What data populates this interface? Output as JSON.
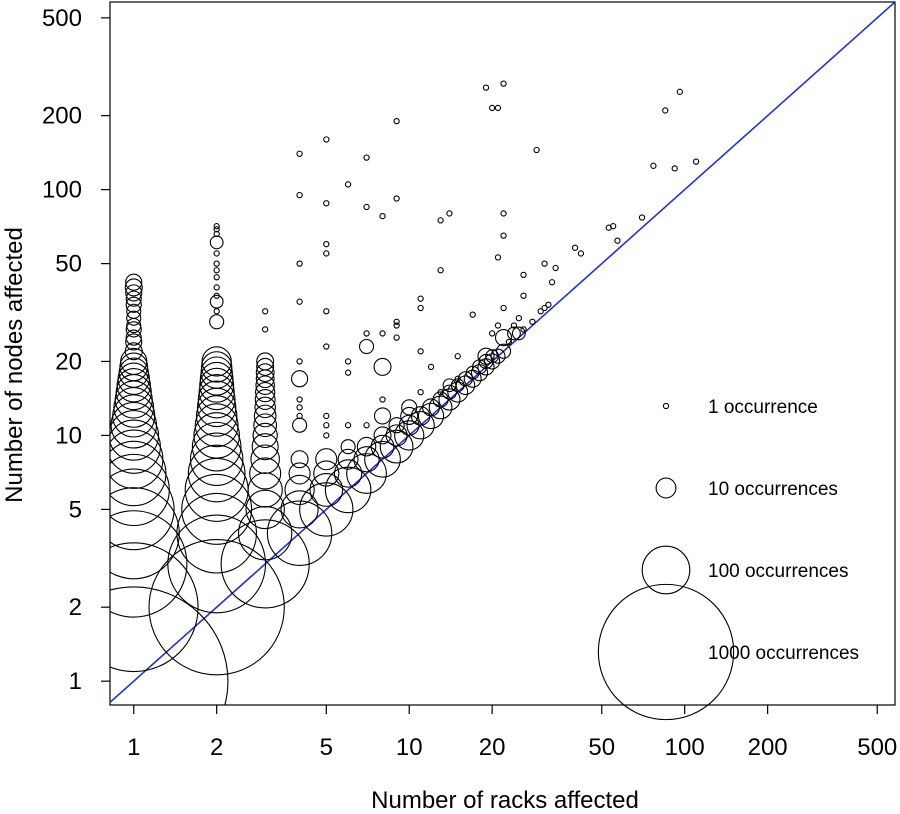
{
  "chart_data": {
    "type": "scatter",
    "title": "",
    "xlabel": "Number of racks affected",
    "ylabel": "Number of nodes affected",
    "x_scale": "log",
    "y_scale": "log",
    "xlim": [
      0.82,
      580
    ],
    "ylim": [
      0.8,
      580
    ],
    "x_ticks": [
      1,
      2,
      5,
      10,
      20,
      50,
      100,
      200,
      500
    ],
    "y_ticks": [
      1,
      2,
      5,
      10,
      20,
      50,
      100,
      200,
      500
    ],
    "x_tick_labels": [
      "1",
      "2",
      "5",
      "10",
      "20",
      "50",
      "100",
      "200",
      "500"
    ],
    "y_tick_labels": [
      "1",
      "2",
      "5",
      "10",
      "20",
      "50",
      "100",
      "200",
      "500"
    ],
    "grid": false,
    "reference_line": {
      "type": "y=x",
      "color": "#2233cc"
    },
    "marker_size_meaning": "bubble area proportional to number of occurrences",
    "legend": {
      "placement": "right",
      "entries": [
        {
          "occurrences": 1,
          "label": "1 occurrence"
        },
        {
          "occurrences": 10,
          "label": "10 occurrences"
        },
        {
          "occurrences": 100,
          "label": "100 occurrences"
        },
        {
          "occurrences": 1000,
          "label": "1000 occurrences"
        }
      ]
    },
    "points": [
      {
        "x": 1,
        "y": 1,
        "n": 2000
      },
      {
        "x": 1,
        "y": 2,
        "n": 900
      },
      {
        "x": 1,
        "y": 3,
        "n": 600
      },
      {
        "x": 1,
        "y": 4,
        "n": 430
      },
      {
        "x": 1,
        "y": 5,
        "n": 330
      },
      {
        "x": 1,
        "y": 6,
        "n": 250
      },
      {
        "x": 1,
        "y": 7,
        "n": 200
      },
      {
        "x": 1,
        "y": 8,
        "n": 160
      },
      {
        "x": 1,
        "y": 9,
        "n": 130
      },
      {
        "x": 1,
        "y": 10,
        "n": 110
      },
      {
        "x": 1,
        "y": 11,
        "n": 90
      },
      {
        "x": 1,
        "y": 12,
        "n": 75
      },
      {
        "x": 1,
        "y": 13,
        "n": 65
      },
      {
        "x": 1,
        "y": 14,
        "n": 55
      },
      {
        "x": 1,
        "y": 15,
        "n": 48
      },
      {
        "x": 1,
        "y": 16,
        "n": 42
      },
      {
        "x": 1,
        "y": 17,
        "n": 36
      },
      {
        "x": 1,
        "y": 18,
        "n": 30
      },
      {
        "x": 1,
        "y": 19,
        "n": 26
      },
      {
        "x": 1,
        "y": 20,
        "n": 22
      },
      {
        "x": 1,
        "y": 22,
        "n": 6
      },
      {
        "x": 1,
        "y": 24,
        "n": 5
      },
      {
        "x": 1,
        "y": 25,
        "n": 4
      },
      {
        "x": 1,
        "y": 27,
        "n": 4
      },
      {
        "x": 1,
        "y": 28,
        "n": 3
      },
      {
        "x": 1,
        "y": 30,
        "n": 3
      },
      {
        "x": 1,
        "y": 32,
        "n": 3
      },
      {
        "x": 1,
        "y": 34,
        "n": 4
      },
      {
        "x": 1,
        "y": 36,
        "n": 4
      },
      {
        "x": 1,
        "y": 38,
        "n": 5
      },
      {
        "x": 1,
        "y": 40,
        "n": 6
      },
      {
        "x": 1,
        "y": 42,
        "n": 5
      },
      {
        "x": 2,
        "y": 2,
        "n": 1000
      },
      {
        "x": 2,
        "y": 3,
        "n": 500
      },
      {
        "x": 2,
        "y": 4,
        "n": 320
      },
      {
        "x": 2,
        "y": 5,
        "n": 240
      },
      {
        "x": 2,
        "y": 6,
        "n": 190
      },
      {
        "x": 2,
        "y": 7,
        "n": 150
      },
      {
        "x": 2,
        "y": 8,
        "n": 125
      },
      {
        "x": 2,
        "y": 9,
        "n": 105
      },
      {
        "x": 2,
        "y": 10,
        "n": 90
      },
      {
        "x": 2,
        "y": 11,
        "n": 78
      },
      {
        "x": 2,
        "y": 12,
        "n": 68
      },
      {
        "x": 2,
        "y": 13,
        "n": 60
      },
      {
        "x": 2,
        "y": 14,
        "n": 54
      },
      {
        "x": 2,
        "y": 15,
        "n": 48
      },
      {
        "x": 2,
        "y": 16,
        "n": 44
      },
      {
        "x": 2,
        "y": 17,
        "n": 40
      },
      {
        "x": 2,
        "y": 18,
        "n": 36
      },
      {
        "x": 2,
        "y": 19,
        "n": 33
      },
      {
        "x": 2,
        "y": 20,
        "n": 30
      },
      {
        "x": 2,
        "y": 29,
        "n": 3
      },
      {
        "x": 2,
        "y": 32,
        "n": 1
      },
      {
        "x": 2,
        "y": 35,
        "n": 2
      },
      {
        "x": 2,
        "y": 37,
        "n": 1
      },
      {
        "x": 2,
        "y": 40,
        "n": 1
      },
      {
        "x": 2,
        "y": 44,
        "n": 1
      },
      {
        "x": 2,
        "y": 47,
        "n": 1
      },
      {
        "x": 2,
        "y": 50,
        "n": 1
      },
      {
        "x": 2,
        "y": 55,
        "n": 1
      },
      {
        "x": 2,
        "y": 61,
        "n": 2
      },
      {
        "x": 2,
        "y": 66,
        "n": 1
      },
      {
        "x": 2,
        "y": 69,
        "n": 1
      },
      {
        "x": 2,
        "y": 71,
        "n": 1
      },
      {
        "x": 3,
        "y": 3,
        "n": 400
      },
      {
        "x": 3,
        "y": 4,
        "n": 130
      },
      {
        "x": 3,
        "y": 5,
        "n": 60
      },
      {
        "x": 3,
        "y": 6,
        "n": 45
      },
      {
        "x": 3,
        "y": 7,
        "n": 35
      },
      {
        "x": 3,
        "y": 8,
        "n": 28
      },
      {
        "x": 3,
        "y": 9,
        "n": 22
      },
      {
        "x": 3,
        "y": 10,
        "n": 18
      },
      {
        "x": 3,
        "y": 11,
        "n": 15
      },
      {
        "x": 3,
        "y": 12,
        "n": 13
      },
      {
        "x": 3,
        "y": 13,
        "n": 11
      },
      {
        "x": 3,
        "y": 14,
        "n": 10
      },
      {
        "x": 3,
        "y": 15,
        "n": 9
      },
      {
        "x": 3,
        "y": 16,
        "n": 8
      },
      {
        "x": 3,
        "y": 17,
        "n": 7
      },
      {
        "x": 3,
        "y": 18,
        "n": 7
      },
      {
        "x": 3,
        "y": 19,
        "n": 6
      },
      {
        "x": 3,
        "y": 20,
        "n": 6
      },
      {
        "x": 3,
        "y": 27,
        "n": 1
      },
      {
        "x": 3,
        "y": 32,
        "n": 1
      },
      {
        "x": 4,
        "y": 4,
        "n": 200
      },
      {
        "x": 4,
        "y": 5,
        "n": 55
      },
      {
        "x": 4,
        "y": 6,
        "n": 30
      },
      {
        "x": 4,
        "y": 7,
        "n": 12
      },
      {
        "x": 4,
        "y": 8,
        "n": 6
      },
      {
        "x": 4,
        "y": 11,
        "n": 3
      },
      {
        "x": 4,
        "y": 12,
        "n": 1
      },
      {
        "x": 4,
        "y": 13,
        "n": 1
      },
      {
        "x": 4,
        "y": 14,
        "n": 1
      },
      {
        "x": 4,
        "y": 17,
        "n": 5
      },
      {
        "x": 4,
        "y": 20,
        "n": 1
      },
      {
        "x": 4,
        "y": 35,
        "n": 1
      },
      {
        "x": 4,
        "y": 50,
        "n": 1
      },
      {
        "x": 4,
        "y": 95,
        "n": 1
      },
      {
        "x": 4,
        "y": 140,
        "n": 1
      },
      {
        "x": 5,
        "y": 5,
        "n": 130
      },
      {
        "x": 5,
        "y": 6,
        "n": 40
      },
      {
        "x": 5,
        "y": 7,
        "n": 20
      },
      {
        "x": 5,
        "y": 8,
        "n": 12
      },
      {
        "x": 5,
        "y": 10,
        "n": 1
      },
      {
        "x": 5,
        "y": 11,
        "n": 1
      },
      {
        "x": 5,
        "y": 12,
        "n": 1
      },
      {
        "x": 5,
        "y": 23,
        "n": 1
      },
      {
        "x": 5,
        "y": 32,
        "n": 1
      },
      {
        "x": 5,
        "y": 55,
        "n": 1
      },
      {
        "x": 5,
        "y": 60,
        "n": 1
      },
      {
        "x": 5,
        "y": 88,
        "n": 1
      },
      {
        "x": 5,
        "y": 160,
        "n": 1
      },
      {
        "x": 6,
        "y": 6,
        "n": 90
      },
      {
        "x": 6,
        "y": 7,
        "n": 25
      },
      {
        "x": 6,
        "y": 8,
        "n": 10
      },
      {
        "x": 6,
        "y": 9,
        "n": 3
      },
      {
        "x": 6,
        "y": 11,
        "n": 1
      },
      {
        "x": 6,
        "y": 18,
        "n": 1
      },
      {
        "x": 6,
        "y": 20,
        "n": 1
      },
      {
        "x": 6,
        "y": 105,
        "n": 1
      },
      {
        "x": 7,
        "y": 7,
        "n": 65
      },
      {
        "x": 7,
        "y": 8,
        "n": 20
      },
      {
        "x": 7,
        "y": 9,
        "n": 8
      },
      {
        "x": 7,
        "y": 11,
        "n": 1
      },
      {
        "x": 7,
        "y": 23,
        "n": 3
      },
      {
        "x": 7,
        "y": 26,
        "n": 1
      },
      {
        "x": 7,
        "y": 85,
        "n": 1
      },
      {
        "x": 7,
        "y": 135,
        "n": 1
      },
      {
        "x": 8,
        "y": 8,
        "n": 50
      },
      {
        "x": 8,
        "y": 9,
        "n": 15
      },
      {
        "x": 8,
        "y": 10,
        "n": 6
      },
      {
        "x": 8,
        "y": 12,
        "n": 5
      },
      {
        "x": 8,
        "y": 14,
        "n": 1
      },
      {
        "x": 8,
        "y": 19,
        "n": 6
      },
      {
        "x": 8,
        "y": 26,
        "n": 1
      },
      {
        "x": 8,
        "y": 78,
        "n": 1
      },
      {
        "x": 9,
        "y": 9,
        "n": 40
      },
      {
        "x": 9,
        "y": 10,
        "n": 12
      },
      {
        "x": 9,
        "y": 11,
        "n": 4
      },
      {
        "x": 9,
        "y": 25,
        "n": 1
      },
      {
        "x": 9,
        "y": 28,
        "n": 1
      },
      {
        "x": 9,
        "y": 29,
        "n": 1
      },
      {
        "x": 9,
        "y": 92,
        "n": 1
      },
      {
        "x": 9,
        "y": 190,
        "n": 1
      },
      {
        "x": 10,
        "y": 10,
        "n": 30
      },
      {
        "x": 10,
        "y": 11,
        "n": 10
      },
      {
        "x": 10,
        "y": 12,
        "n": 6
      },
      {
        "x": 10,
        "y": 13,
        "n": 4
      },
      {
        "x": 11,
        "y": 11,
        "n": 25
      },
      {
        "x": 11,
        "y": 12,
        "n": 8
      },
      {
        "x": 11,
        "y": 15,
        "n": 1
      },
      {
        "x": 11,
        "y": 22,
        "n": 1
      },
      {
        "x": 11,
        "y": 33,
        "n": 1
      },
      {
        "x": 11,
        "y": 36,
        "n": 1
      },
      {
        "x": 12,
        "y": 12,
        "n": 20
      },
      {
        "x": 12,
        "y": 13,
        "n": 6
      },
      {
        "x": 12,
        "y": 19,
        "n": 1
      },
      {
        "x": 13,
        "y": 13,
        "n": 15
      },
      {
        "x": 13,
        "y": 14,
        "n": 4
      },
      {
        "x": 13,
        "y": 15,
        "n": 1
      },
      {
        "x": 13,
        "y": 47,
        "n": 1
      },
      {
        "x": 13,
        "y": 75,
        "n": 1
      },
      {
        "x": 14,
        "y": 14,
        "n": 12
      },
      {
        "x": 14,
        "y": 15,
        "n": 3
      },
      {
        "x": 14,
        "y": 16,
        "n": 2
      },
      {
        "x": 14,
        "y": 80,
        "n": 1
      },
      {
        "x": 15,
        "y": 15,
        "n": 10
      },
      {
        "x": 15,
        "y": 16,
        "n": 2
      },
      {
        "x": 15,
        "y": 17,
        "n": 1
      },
      {
        "x": 15,
        "y": 21,
        "n": 1
      },
      {
        "x": 16,
        "y": 16,
        "n": 8
      },
      {
        "x": 16,
        "y": 17,
        "n": 3
      },
      {
        "x": 17,
        "y": 17,
        "n": 6
      },
      {
        "x": 17,
        "y": 18,
        "n": 2
      },
      {
        "x": 17,
        "y": 31,
        "n": 1
      },
      {
        "x": 18,
        "y": 18,
        "n": 5
      },
      {
        "x": 18,
        "y": 19,
        "n": 3
      },
      {
        "x": 19,
        "y": 19,
        "n": 5
      },
      {
        "x": 19,
        "y": 20,
        "n": 3
      },
      {
        "x": 19,
        "y": 21,
        "n": 5
      },
      {
        "x": 19,
        "y": 260,
        "n": 1
      },
      {
        "x": 20,
        "y": 20,
        "n": 4
      },
      {
        "x": 20,
        "y": 21,
        "n": 2
      },
      {
        "x": 20,
        "y": 26,
        "n": 1
      },
      {
        "x": 20,
        "y": 215,
        "n": 1
      },
      {
        "x": 21,
        "y": 21,
        "n": 3
      },
      {
        "x": 21,
        "y": 28,
        "n": 1
      },
      {
        "x": 21,
        "y": 53,
        "n": 1
      },
      {
        "x": 21,
        "y": 215,
        "n": 1
      },
      {
        "x": 22,
        "y": 22,
        "n": 3
      },
      {
        "x": 22,
        "y": 25,
        "n": 5
      },
      {
        "x": 22,
        "y": 33,
        "n": 1
      },
      {
        "x": 22,
        "y": 65,
        "n": 1
      },
      {
        "x": 22,
        "y": 80,
        "n": 1
      },
      {
        "x": 22,
        "y": 270,
        "n": 1
      },
      {
        "x": 23,
        "y": 24,
        "n": 1
      },
      {
        "x": 24,
        "y": 26,
        "n": 2
      },
      {
        "x": 24,
        "y": 28,
        "n": 1
      },
      {
        "x": 25,
        "y": 26,
        "n": 2
      },
      {
        "x": 25,
        "y": 30,
        "n": 1
      },
      {
        "x": 26,
        "y": 27,
        "n": 1
      },
      {
        "x": 26,
        "y": 37,
        "n": 1
      },
      {
        "x": 26,
        "y": 45,
        "n": 1
      },
      {
        "x": 28,
        "y": 29,
        "n": 1
      },
      {
        "x": 29,
        "y": 145,
        "n": 1
      },
      {
        "x": 30,
        "y": 32,
        "n": 1
      },
      {
        "x": 31,
        "y": 33,
        "n": 1
      },
      {
        "x": 31,
        "y": 50,
        "n": 1
      },
      {
        "x": 32,
        "y": 34,
        "n": 1
      },
      {
        "x": 33,
        "y": 42,
        "n": 1
      },
      {
        "x": 34,
        "y": 48,
        "n": 1
      },
      {
        "x": 40,
        "y": 58,
        "n": 1
      },
      {
        "x": 42,
        "y": 55,
        "n": 1
      },
      {
        "x": 53,
        "y": 70,
        "n": 1
      },
      {
        "x": 55,
        "y": 71,
        "n": 1
      },
      {
        "x": 57,
        "y": 62,
        "n": 1
      },
      {
        "x": 70,
        "y": 77,
        "n": 1
      },
      {
        "x": 77,
        "y": 125,
        "n": 1
      },
      {
        "x": 85,
        "y": 210,
        "n": 1
      },
      {
        "x": 92,
        "y": 122,
        "n": 1
      },
      {
        "x": 96,
        "y": 250,
        "n": 1
      },
      {
        "x": 110,
        "y": 130,
        "n": 1
      }
    ]
  }
}
